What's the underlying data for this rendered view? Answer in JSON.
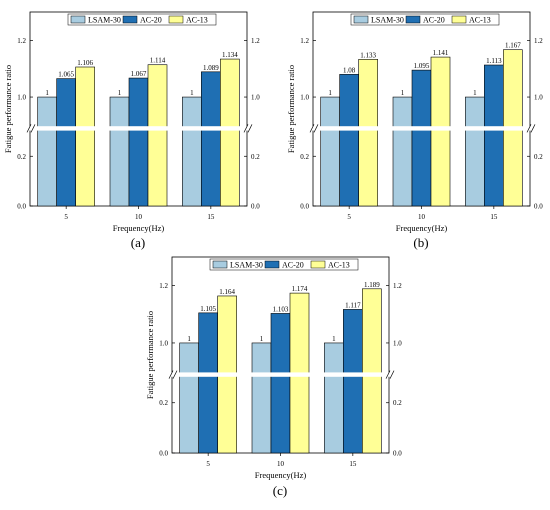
{
  "figure": {
    "ylabel": "Fatigue performance ratio",
    "xlabel": "Frequency(Hz)",
    "legend": [
      "LSAM-30",
      "AC-20",
      "AC-13"
    ],
    "colors": {
      "LSAM-30": "#a8cce0",
      "AC-20": "#1f6fb3",
      "AC-13": "#ffff96"
    },
    "captions": [
      "(a)",
      "(b)",
      "(c)"
    ]
  },
  "chart_data": [
    {
      "type": "bar",
      "caption": "(a)",
      "categories": [
        "5",
        "10",
        "15"
      ],
      "series": [
        {
          "name": "LSAM-30",
          "values": [
            1,
            1,
            1
          ],
          "labels": [
            "1",
            "1",
            "1"
          ]
        },
        {
          "name": "AC-20",
          "values": [
            1.065,
            1.067,
            1.089
          ],
          "labels": [
            "1.065",
            "1.067",
            "1.089"
          ]
        },
        {
          "name": "AC-13",
          "values": [
            1.106,
            1.114,
            1.134
          ],
          "labels": [
            "1.106",
            "1.114",
            "1.134"
          ]
        }
      ],
      "xlabel": "Frequency(Hz)",
      "ylabel": "Fatigue performance ratio",
      "yticks_lower": [
        "0.0",
        "0.2"
      ],
      "yticks_upper": [
        "1.0",
        "1.2"
      ],
      "axis_break": true,
      "legend_position": "top-center"
    },
    {
      "type": "bar",
      "caption": "(b)",
      "categories": [
        "5",
        "10",
        "15"
      ],
      "series": [
        {
          "name": "LSAM-30",
          "values": [
            1,
            1,
            1
          ],
          "labels": [
            "1",
            "1",
            "1"
          ]
        },
        {
          "name": "AC-20",
          "values": [
            1.08,
            1.095,
            1.113
          ],
          "labels": [
            "1.08",
            "1.095",
            "1.113"
          ]
        },
        {
          "name": "AC-13",
          "values": [
            1.133,
            1.141,
            1.167
          ],
          "labels": [
            "1.133",
            "1.141",
            "1.167"
          ]
        }
      ],
      "xlabel": "Frequency(Hz)",
      "ylabel": "Fatigue performance ratio",
      "yticks_lower": [
        "0.0",
        "0.2"
      ],
      "yticks_upper": [
        "1.0",
        "1.2"
      ],
      "axis_break": true,
      "legend_position": "top-center"
    },
    {
      "type": "bar",
      "caption": "(c)",
      "categories": [
        "5",
        "10",
        "15"
      ],
      "series": [
        {
          "name": "LSAM-30",
          "values": [
            1,
            1,
            1
          ],
          "labels": [
            "1",
            "1",
            "1"
          ]
        },
        {
          "name": "AC-20",
          "values": [
            1.105,
            1.103,
            1.117
          ],
          "labels": [
            "1.105",
            "1.103",
            "1.117"
          ]
        },
        {
          "name": "AC-13",
          "values": [
            1.164,
            1.174,
            1.189
          ],
          "labels": [
            "1.164",
            "1.174",
            "1.189"
          ]
        }
      ],
      "xlabel": "Frequency(Hz)",
      "ylabel": "Fatigue performance ratio",
      "yticks_lower": [
        "0.0",
        "0.2"
      ],
      "yticks_upper": [
        "1.0",
        "1.2"
      ],
      "axis_break": true,
      "legend_position": "top-center"
    }
  ]
}
